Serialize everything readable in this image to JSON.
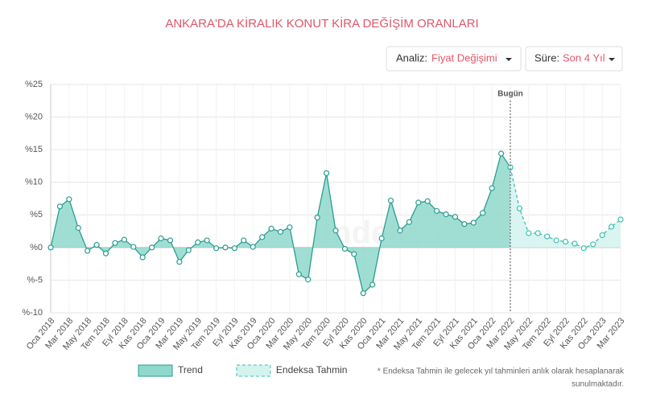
{
  "controls": [
    {
      "label": "Analiz:",
      "value": "Fiyat Değişimi"
    },
    {
      "label": "Süre:",
      "value": "Son 4 Yıl"
    }
  ],
  "footnote": [
    "* Endeksa Tahmin ile gelecek yıl tahminleri anlık olarak hesaplanarak",
    "sunulmaktadır."
  ],
  "chart_data": {
    "type": "area",
    "title": "ANKARA'DA KİRALIK KONUT KİRA DEĞİŞİM ORANLARI",
    "watermark": "endeksa",
    "categories": [
      "Oca 2018",
      null,
      "Mar 2018",
      null,
      "May 2018",
      null,
      "Tem 2018",
      null,
      "Eyl 2018",
      null,
      "Kas 2018",
      null,
      "Oca 2019",
      null,
      "Mar 2019",
      null,
      "May 2019",
      null,
      "Tem 2019",
      null,
      "Eyl 2019",
      null,
      "Kas 2019",
      null,
      "Oca 2020",
      null,
      "Mar 2020",
      null,
      "May 2020",
      null,
      "Tem 2020",
      null,
      "Eyl 2020",
      null,
      "Kas 2020",
      null,
      "Oca 2021",
      null,
      "Mar 2021",
      null,
      "May 2021",
      null,
      "Tem 2021",
      null,
      "Eyl 2021",
      null,
      "Kas 2021",
      null,
      "Oca 2022",
      null,
      "Mar 2022",
      null,
      "May 2022",
      null,
      "Tem 2022",
      null,
      "Eyl 2022",
      null,
      "Kas 2022",
      null,
      "Oca 2023",
      null,
      "Mar 2023"
    ],
    "series": [
      {
        "name": "Trend",
        "color": "#2a9d8f",
        "fill": "#8fd8cc",
        "dashed": false,
        "values": [
          0,
          6.3,
          7.4,
          3.0,
          -0.5,
          0.4,
          -0.9,
          0.7,
          1.2,
          0.1,
          -1.5,
          0,
          1.4,
          1.1,
          -2.2,
          -0.4,
          0.8,
          1.1,
          -0.1,
          0,
          -0.1,
          1.1,
          0.1,
          1.6,
          2.9,
          2.4,
          3.1,
          -4.1,
          -4.9,
          4.6,
          11.4,
          2.6,
          -0.2,
          -1.0,
          -7.0,
          -5.7,
          1.4,
          7.2,
          2.6,
          3.9,
          6.9,
          7.1,
          5.6,
          5.1,
          4.7,
          3.6,
          3.8,
          5.3,
          9.1,
          14.4,
          12.3,
          null,
          null,
          null,
          null,
          null,
          null,
          null,
          null,
          null,
          null,
          null,
          null
        ]
      },
      {
        "name": "Endeksa Tahmin",
        "color": "#3dbfb0",
        "fill": "#d3f3ee",
        "dashed": true,
        "values": [
          null,
          null,
          null,
          null,
          null,
          null,
          null,
          null,
          null,
          null,
          null,
          null,
          null,
          null,
          null,
          null,
          null,
          null,
          null,
          null,
          null,
          null,
          null,
          null,
          null,
          null,
          null,
          null,
          null,
          null,
          null,
          null,
          null,
          null,
          null,
          null,
          null,
          null,
          null,
          null,
          null,
          null,
          null,
          null,
          null,
          null,
          null,
          null,
          null,
          null,
          12.3,
          6.0,
          2.2,
          2.2,
          1.7,
          1.1,
          0.9,
          0.6,
          -0.1,
          0.5,
          1.9,
          3.2,
          4.3
        ]
      }
    ],
    "annotations": [
      {
        "text": "Bugün",
        "x": "Mar 2022"
      }
    ],
    "ylim": [
      -10,
      25
    ],
    "yticks": [
      {
        "value": -10,
        "label": "%-10"
      },
      {
        "value": -5,
        "label": "%-5"
      },
      {
        "value": 0,
        "label": "%0"
      },
      {
        "value": 5,
        "label": "%5"
      },
      {
        "value": 10,
        "label": "%10"
      },
      {
        "value": 15,
        "label": "%15"
      },
      {
        "value": 20,
        "label": "%20"
      },
      {
        "value": 25,
        "label": "%25"
      }
    ],
    "grid": true,
    "legend": "bottom"
  }
}
